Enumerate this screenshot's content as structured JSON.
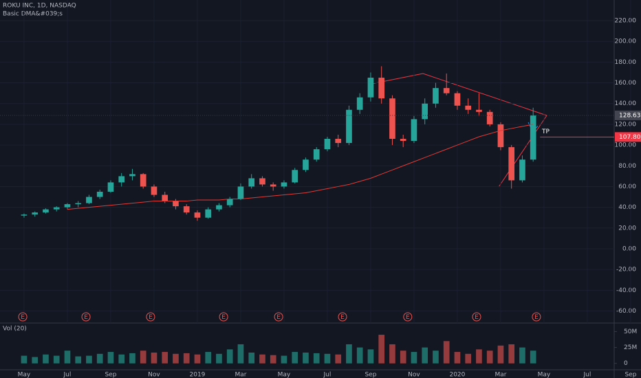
{
  "chart_data": {
    "type": "candlestick",
    "title": "ROKU INC, 1D, NASDAQ",
    "indicator": "Basic DMA&#039;s",
    "x": [
      0,
      0.5,
      1,
      1.5,
      2,
      2.5,
      3,
      3.5,
      4,
      4.5,
      5,
      5.5,
      6,
      6.5,
      7,
      7.5,
      8,
      8.5,
      9,
      9.5,
      10,
      10.5,
      11,
      11.5,
      12,
      12.5,
      13,
      13.5,
      14,
      14.5,
      15,
      15.5,
      16,
      16.5,
      17,
      17.5,
      18,
      18.5,
      19,
      19.5,
      20,
      20.5,
      21,
      21.5,
      22,
      22.5,
      23,
      23.5
    ],
    "open": [
      32,
      33,
      35,
      38,
      40,
      43,
      44,
      50,
      55,
      64,
      70,
      72,
      60,
      52,
      46,
      41,
      35,
      30,
      38,
      42,
      48,
      60,
      68,
      62,
      60,
      64,
      76,
      86,
      96,
      106,
      102,
      134,
      146,
      165,
      145,
      106,
      104,
      125,
      140,
      155,
      150,
      138,
      134,
      132,
      120,
      98,
      66,
      86
    ],
    "high": [
      34,
      36,
      39,
      41,
      44,
      46,
      52,
      57,
      66,
      73,
      77,
      73,
      62,
      55,
      48,
      43,
      37,
      40,
      44,
      50,
      63,
      72,
      70,
      64,
      66,
      78,
      88,
      98,
      108,
      110,
      138,
      150,
      170,
      176,
      148,
      110,
      128,
      145,
      160,
      169,
      152,
      145,
      150,
      134,
      122,
      100,
      90,
      136
    ],
    "low": [
      30,
      31,
      34,
      36,
      38,
      40,
      43,
      48,
      54,
      60,
      66,
      58,
      50,
      44,
      38,
      33,
      27,
      29,
      36,
      40,
      47,
      58,
      60,
      56,
      58,
      63,
      74,
      84,
      94,
      98,
      100,
      130,
      142,
      140,
      100,
      98,
      102,
      120,
      136,
      148,
      134,
      130,
      128,
      118,
      95,
      58,
      64,
      84
    ],
    "close": [
      33,
      35,
      38,
      40,
      43,
      44,
      50,
      55,
      64,
      70,
      72,
      60,
      52,
      46,
      41,
      35,
      30,
      38,
      42,
      48,
      60,
      68,
      62,
      60,
      64,
      76,
      86,
      96,
      106,
      102,
      134,
      146,
      165,
      145,
      106,
      104,
      125,
      140,
      155,
      150,
      138,
      134,
      132,
      120,
      98,
      66,
      86,
      128.63
    ],
    "up_color": "#26a69a",
    "down_color": "#ef5350",
    "ma": {
      "color": "#e53935",
      "values": [
        null,
        null,
        null,
        null,
        38,
        39,
        40,
        41,
        42,
        43,
        44,
        45,
        46,
        46,
        46,
        46,
        47,
        47,
        47,
        48,
        48,
        49,
        50,
        51,
        52,
        53,
        54,
        56,
        58,
        60,
        62,
        65,
        68,
        72,
        76,
        80,
        84,
        88,
        92,
        96,
        100,
        104,
        108,
        111,
        114,
        116,
        118,
        120
      ]
    },
    "xlim": [
      -1.11,
      27.24
    ],
    "xticks": [
      {
        "value": 0,
        "label": "May"
      },
      {
        "value": 2,
        "label": "Jul"
      },
      {
        "value": 4,
        "label": "Sep"
      },
      {
        "value": 6,
        "label": "Nov"
      },
      {
        "value": 8,
        "label": "2019"
      },
      {
        "value": 10,
        "label": "Mar"
      },
      {
        "value": 12,
        "label": "May"
      },
      {
        "value": 14,
        "label": "Jul"
      },
      {
        "value": 16,
        "label": "Sep"
      },
      {
        "value": 18,
        "label": "Nov"
      },
      {
        "value": 20,
        "label": "2020"
      },
      {
        "value": 22,
        "label": "Mar"
      },
      {
        "value": 24,
        "label": "May"
      },
      {
        "value": 26,
        "label": "Jul"
      },
      {
        "value": 28,
        "label": "Sep"
      }
    ],
    "ylim": [
      -71.6,
      239.9
    ],
    "yticks": [
      {
        "value": -60,
        "label": "-60.00"
      },
      {
        "value": -40,
        "label": "-40.00"
      },
      {
        "value": -20,
        "label": "-20.00"
      },
      {
        "value": 0,
        "label": "0.00"
      },
      {
        "value": 20,
        "label": "20.00"
      },
      {
        "value": 40,
        "label": "40.00"
      },
      {
        "value": 60,
        "label": "60.00"
      },
      {
        "value": 80,
        "label": "80.00"
      },
      {
        "value": 100,
        "label": "100.00"
      },
      {
        "value": 120,
        "label": "120.00"
      },
      {
        "value": 140,
        "label": "140.00"
      },
      {
        "value": 160,
        "label": "160.00"
      },
      {
        "value": 180,
        "label": "180.00"
      },
      {
        "value": 200,
        "label": "200.00"
      },
      {
        "value": 220,
        "label": "220.00"
      }
    ],
    "price_labels": [
      {
        "value": 128.63,
        "label": "128.63",
        "color": "#434651"
      },
      {
        "value": 107.8,
        "label": "107.80",
        "color": "#f23645"
      }
    ],
    "tp_label": "TP",
    "earnings": {
      "x": [
        -0.06,
        2.86,
        5.84,
        9.21,
        11.75,
        14.7,
        17.71,
        20.89,
        23.65
      ],
      "labels": [
        "E",
        "E",
        "E",
        "E",
        "E",
        "E",
        "E",
        "E",
        "E"
      ]
    },
    "volume": {
      "title": "Vol (20)",
      "values": [
        12000000,
        10000000,
        14000000,
        12000000,
        20000000,
        11000000,
        12000000,
        15000000,
        18000000,
        14000000,
        16000000,
        20000000,
        17000000,
        18000000,
        15000000,
        16000000,
        14000000,
        18000000,
        15000000,
        22000000,
        30000000,
        17000000,
        14000000,
        13000000,
        12000000,
        18000000,
        17000000,
        16000000,
        15000000,
        14000000,
        30000000,
        25000000,
        22000000,
        45000000,
        30000000,
        20000000,
        18000000,
        25000000,
        20000000,
        35000000,
        18000000,
        15000000,
        22000000,
        20000000,
        28000000,
        30000000,
        25000000,
        20000000
      ],
      "ylim": [
        -10000000,
        61250000
      ],
      "yticks": [
        {
          "value": 0,
          "label": "0"
        },
        {
          "value": 25000000,
          "label": "25M"
        },
        {
          "value": 50000000,
          "label": "50M"
        }
      ]
    }
  }
}
